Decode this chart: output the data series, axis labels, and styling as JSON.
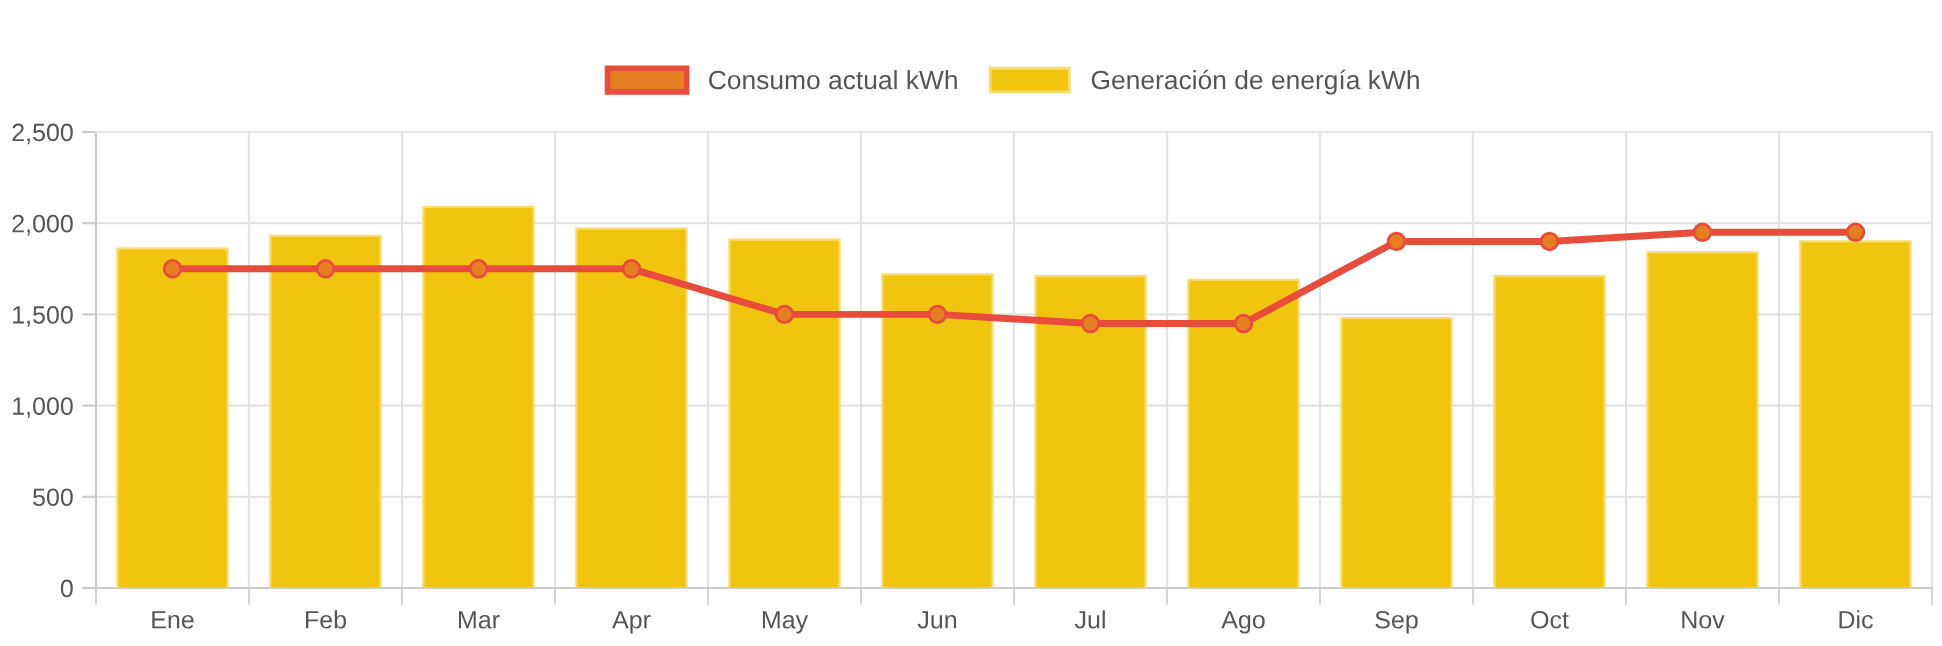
{
  "chart_data": {
    "type": "bar",
    "categories": [
      "Ene",
      "Feb",
      "Mar",
      "Apr",
      "May",
      "Jun",
      "Jul",
      "Ago",
      "Sep",
      "Oct",
      "Nov",
      "Dic"
    ],
    "series": [
      {
        "name": "Consumo actual kWh",
        "type": "line",
        "color": "#e74c3c",
        "values": [
          1750,
          1750,
          1750,
          1750,
          1500,
          1500,
          1450,
          1450,
          1900,
          1900,
          1950,
          1950
        ]
      },
      {
        "name": "Generación de energía kWh",
        "color": "#f1c40f",
        "values": [
          1860,
          1930,
          2090,
          1970,
          1910,
          1720,
          1710,
          1690,
          1480,
          1710,
          1840,
          1900
        ]
      }
    ],
    "ylim": [
      0,
      2500
    ],
    "yticks": [
      0,
      500,
      {
        "value": 1000,
        "label": "1,000"
      },
      {
        "value": 1500,
        "label": "1,500"
      },
      {
        "value": 2000,
        "label": "2,000"
      },
      {
        "value": 2500,
        "label": "2,500"
      }
    ],
    "grid": true,
    "legend": "top",
    "marker": "circle",
    "line_style": "solid"
  }
}
